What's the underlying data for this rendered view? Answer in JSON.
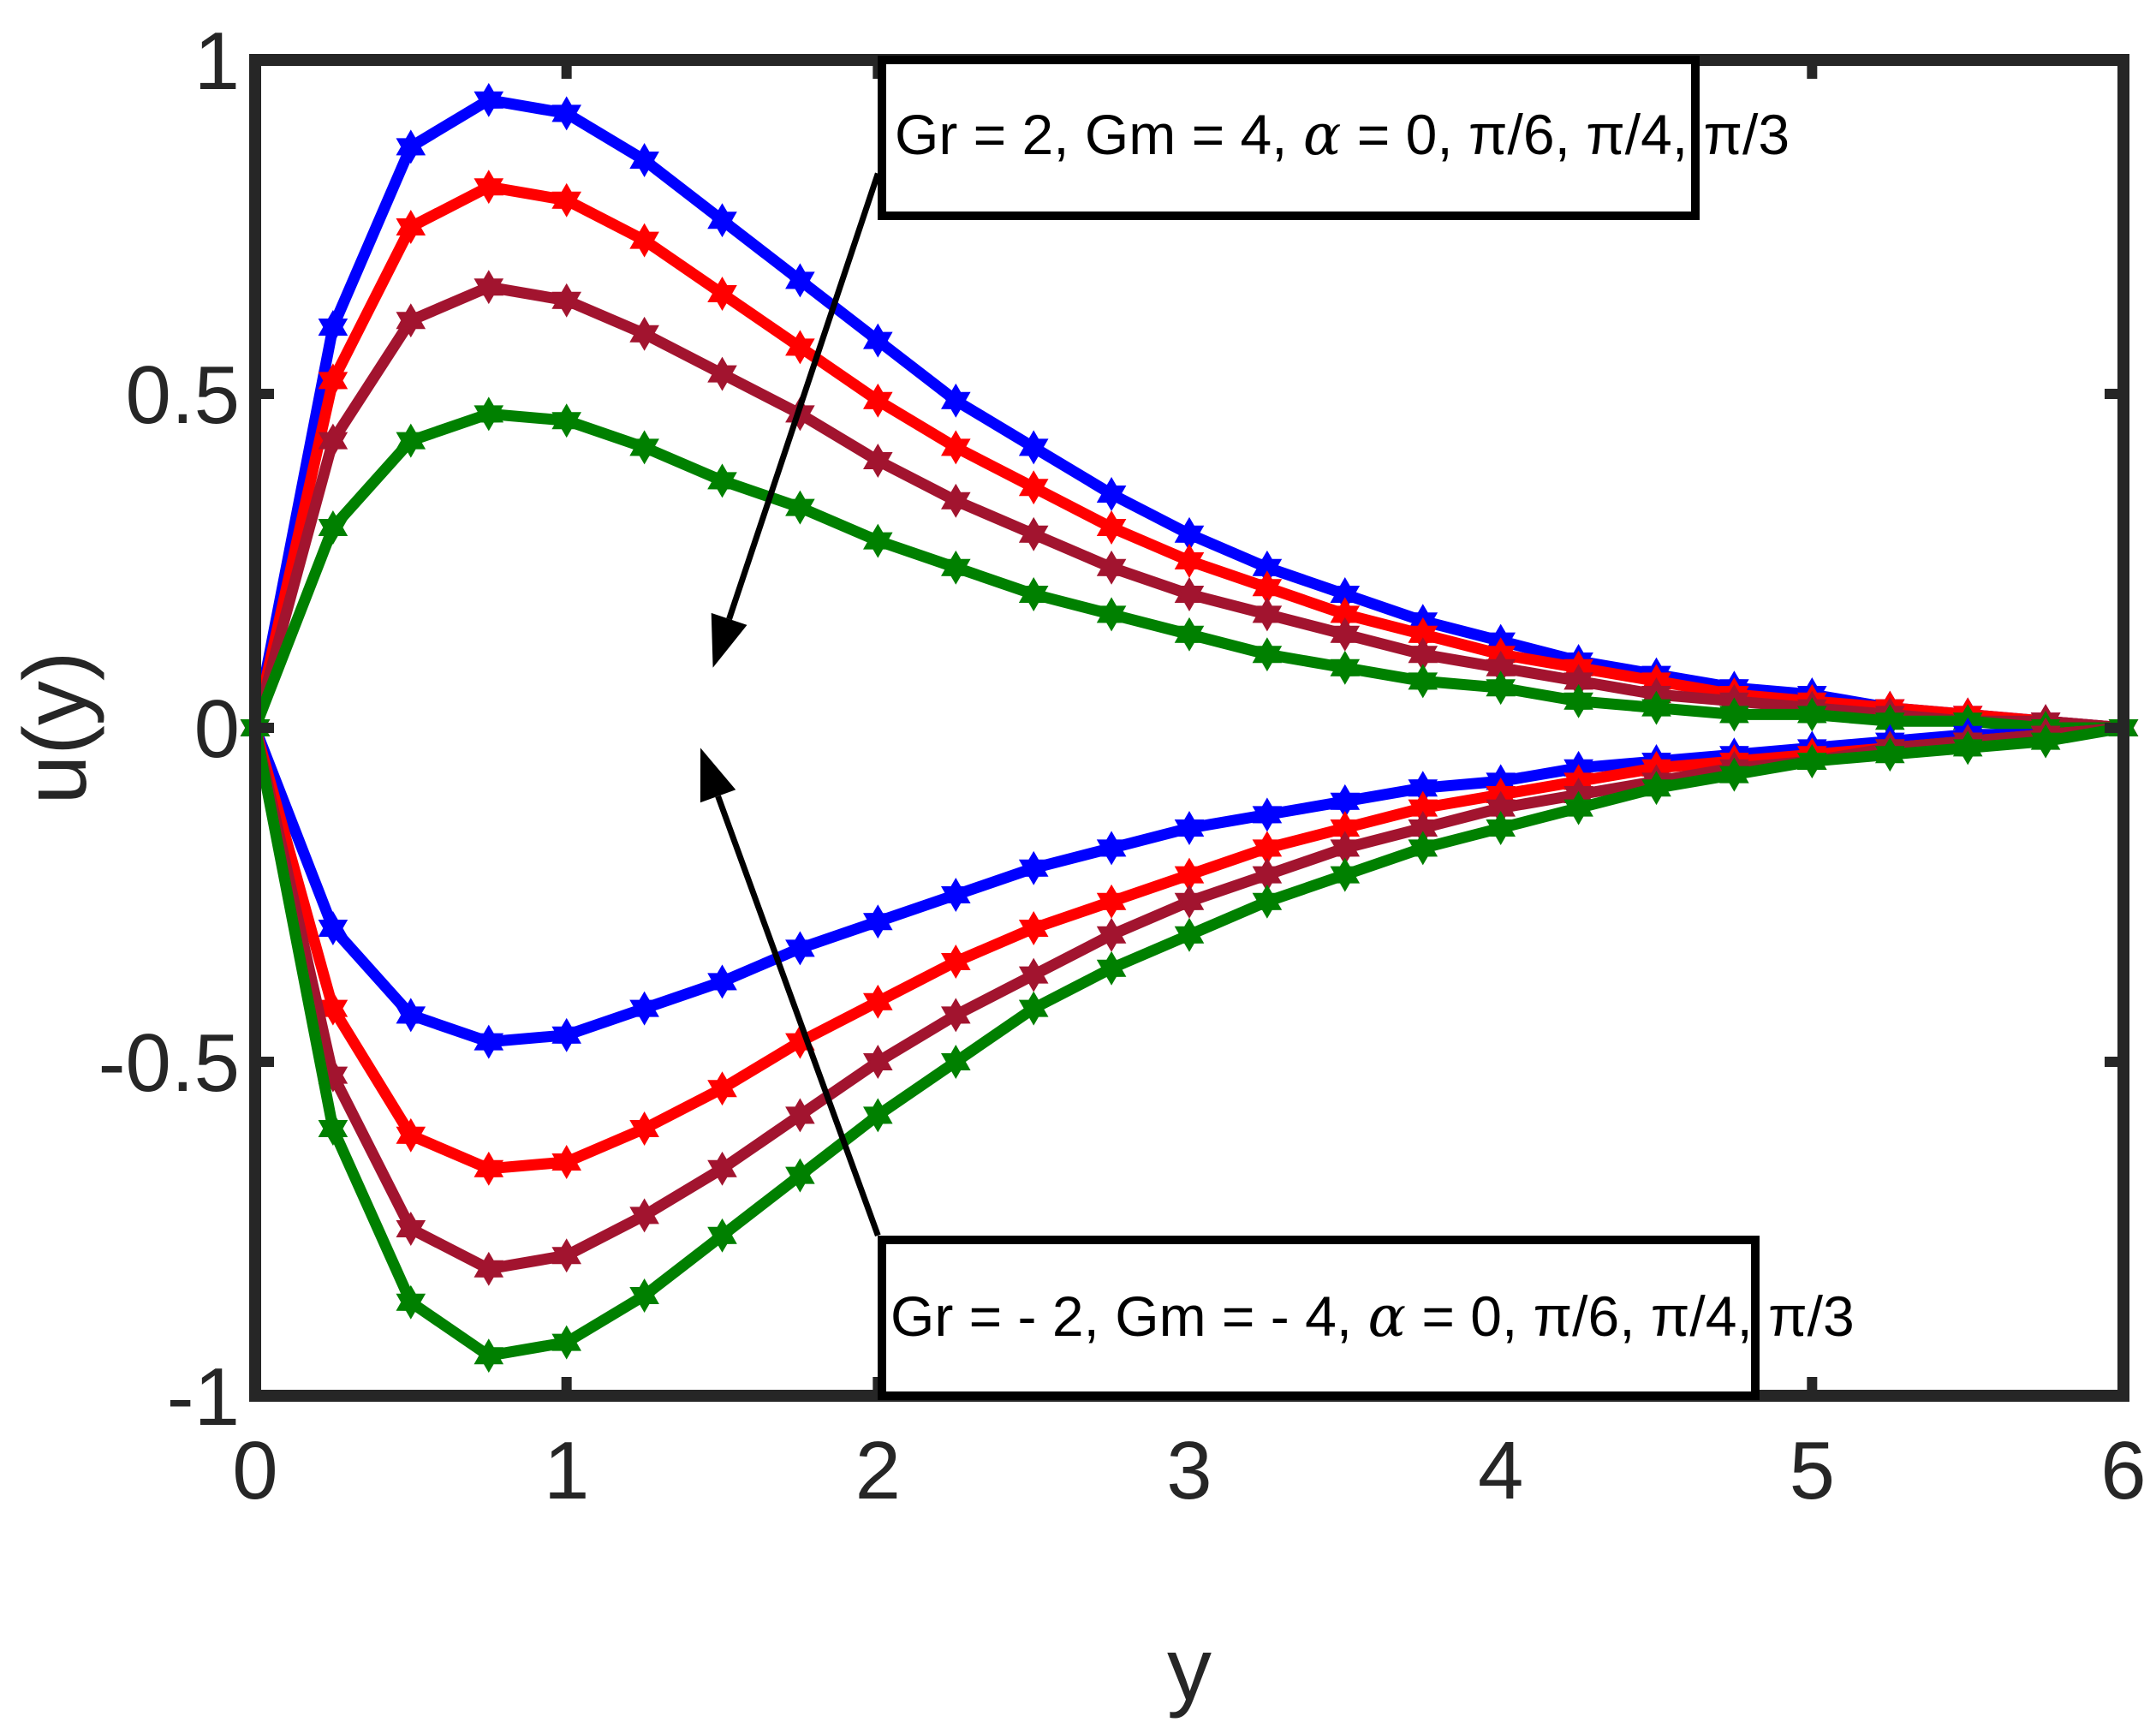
{
  "chart_data": {
    "type": "line",
    "title": "",
    "xlabel": "y",
    "ylabel": "u(y)",
    "xlim": [
      0,
      6
    ],
    "ylim": [
      -1,
      1
    ],
    "xticks": [
      "0",
      "1",
      "2",
      "3",
      "4",
      "5",
      "6"
    ],
    "yticks": [
      "-1",
      "-0.5",
      "0",
      "0.5",
      "1"
    ],
    "xtick_values": [
      0,
      1,
      2,
      3,
      4,
      5,
      6
    ],
    "ytick_values": [
      -1,
      -0.5,
      0,
      0.5,
      1
    ],
    "grid": false,
    "box": true,
    "x": [
      0,
      0.25,
      0.5,
      0.75,
      1,
      1.25,
      1.5,
      1.75,
      2,
      2.25,
      2.5,
      2.75,
      3,
      3.25,
      3.5,
      3.75,
      4,
      4.25,
      4.5,
      4.75,
      5,
      5.25,
      5.5,
      5.75,
      6
    ],
    "series": [
      {
        "group": "positive",
        "color": "#0000ff",
        "marker": "hexagram",
        "values": [
          0,
          0.6,
          0.87,
          0.94,
          0.92,
          0.85,
          0.76,
          0.67,
          0.58,
          0.49,
          0.42,
          0.35,
          0.29,
          0.24,
          0.2,
          0.16,
          0.13,
          0.1,
          0.08,
          0.06,
          0.05,
          0.03,
          0.02,
          0.01,
          0
        ]
      },
      {
        "group": "positive",
        "color": "#ff0000",
        "marker": "hexagram",
        "values": [
          0,
          0.52,
          0.75,
          0.81,
          0.79,
          0.73,
          0.65,
          0.57,
          0.49,
          0.42,
          0.36,
          0.3,
          0.25,
          0.21,
          0.17,
          0.14,
          0.11,
          0.09,
          0.07,
          0.05,
          0.04,
          0.03,
          0.02,
          0.01,
          0
        ]
      },
      {
        "group": "positive",
        "color": "#a2142f",
        "marker": "hexagram",
        "values": [
          0,
          0.43,
          0.61,
          0.66,
          0.64,
          0.59,
          0.53,
          0.47,
          0.4,
          0.34,
          0.29,
          0.24,
          0.2,
          0.17,
          0.14,
          0.11,
          0.09,
          0.07,
          0.05,
          0.04,
          0.03,
          0.02,
          0.01,
          0.01,
          0
        ]
      },
      {
        "group": "positive",
        "color": "#008000",
        "marker": "hexagram",
        "values": [
          0,
          0.3,
          0.43,
          0.47,
          0.46,
          0.42,
          0.37,
          0.33,
          0.28,
          0.24,
          0.2,
          0.17,
          0.14,
          0.11,
          0.09,
          0.07,
          0.06,
          0.04,
          0.03,
          0.02,
          0.02,
          0.01,
          0.01,
          0,
          0
        ]
      },
      {
        "group": "negative",
        "color": "#0000ff",
        "marker": "hexagram",
        "values": [
          0,
          -0.3,
          -0.43,
          -0.47,
          -0.46,
          -0.42,
          -0.38,
          -0.33,
          -0.29,
          -0.25,
          -0.21,
          -0.18,
          -0.15,
          -0.13,
          -0.11,
          -0.09,
          -0.08,
          -0.06,
          -0.05,
          -0.04,
          -0.03,
          -0.02,
          -0.01,
          -0.01,
          0
        ]
      },
      {
        "group": "negative",
        "color": "#ff0000",
        "marker": "hexagram",
        "values": [
          0,
          -0.42,
          -0.61,
          -0.66,
          -0.65,
          -0.6,
          -0.54,
          -0.47,
          -0.41,
          -0.35,
          -0.3,
          -0.26,
          -0.22,
          -0.18,
          -0.15,
          -0.12,
          -0.1,
          -0.08,
          -0.06,
          -0.05,
          -0.04,
          -0.03,
          -0.02,
          -0.01,
          0
        ]
      },
      {
        "group": "negative",
        "color": "#a2142f",
        "marker": "hexagram",
        "values": [
          0,
          -0.52,
          -0.75,
          -0.81,
          -0.79,
          -0.73,
          -0.66,
          -0.58,
          -0.5,
          -0.43,
          -0.37,
          -0.31,
          -0.26,
          -0.22,
          -0.18,
          -0.15,
          -0.12,
          -0.1,
          -0.08,
          -0.06,
          -0.05,
          -0.03,
          -0.02,
          -0.01,
          0
        ]
      },
      {
        "group": "negative",
        "color": "#008000",
        "marker": "hexagram",
        "values": [
          0,
          -0.6,
          -0.86,
          -0.94,
          -0.92,
          -0.85,
          -0.76,
          -0.67,
          -0.58,
          -0.5,
          -0.42,
          -0.36,
          -0.31,
          -0.26,
          -0.22,
          -0.18,
          -0.15,
          -0.12,
          -0.09,
          -0.07,
          -0.05,
          -0.04,
          -0.03,
          -0.02,
          0
        ]
      }
    ],
    "annotations": [
      {
        "text_before": "Gr = 2, Gm = 4, ",
        "symbol": "α",
        "text_after": " = 0, π/6, π/4, π/3",
        "arrow_from": [
          2,
          0.83
        ],
        "arrow_to": [
          1.47,
          0.09
        ]
      },
      {
        "text_before": "Gr = - 2, Gm = - 4, ",
        "symbol": "α",
        "text_after": " = 0, π/6, π/4, π/3",
        "arrow_from": [
          2,
          -0.76
        ],
        "arrow_to": [
          1.43,
          -0.03
        ]
      }
    ]
  }
}
